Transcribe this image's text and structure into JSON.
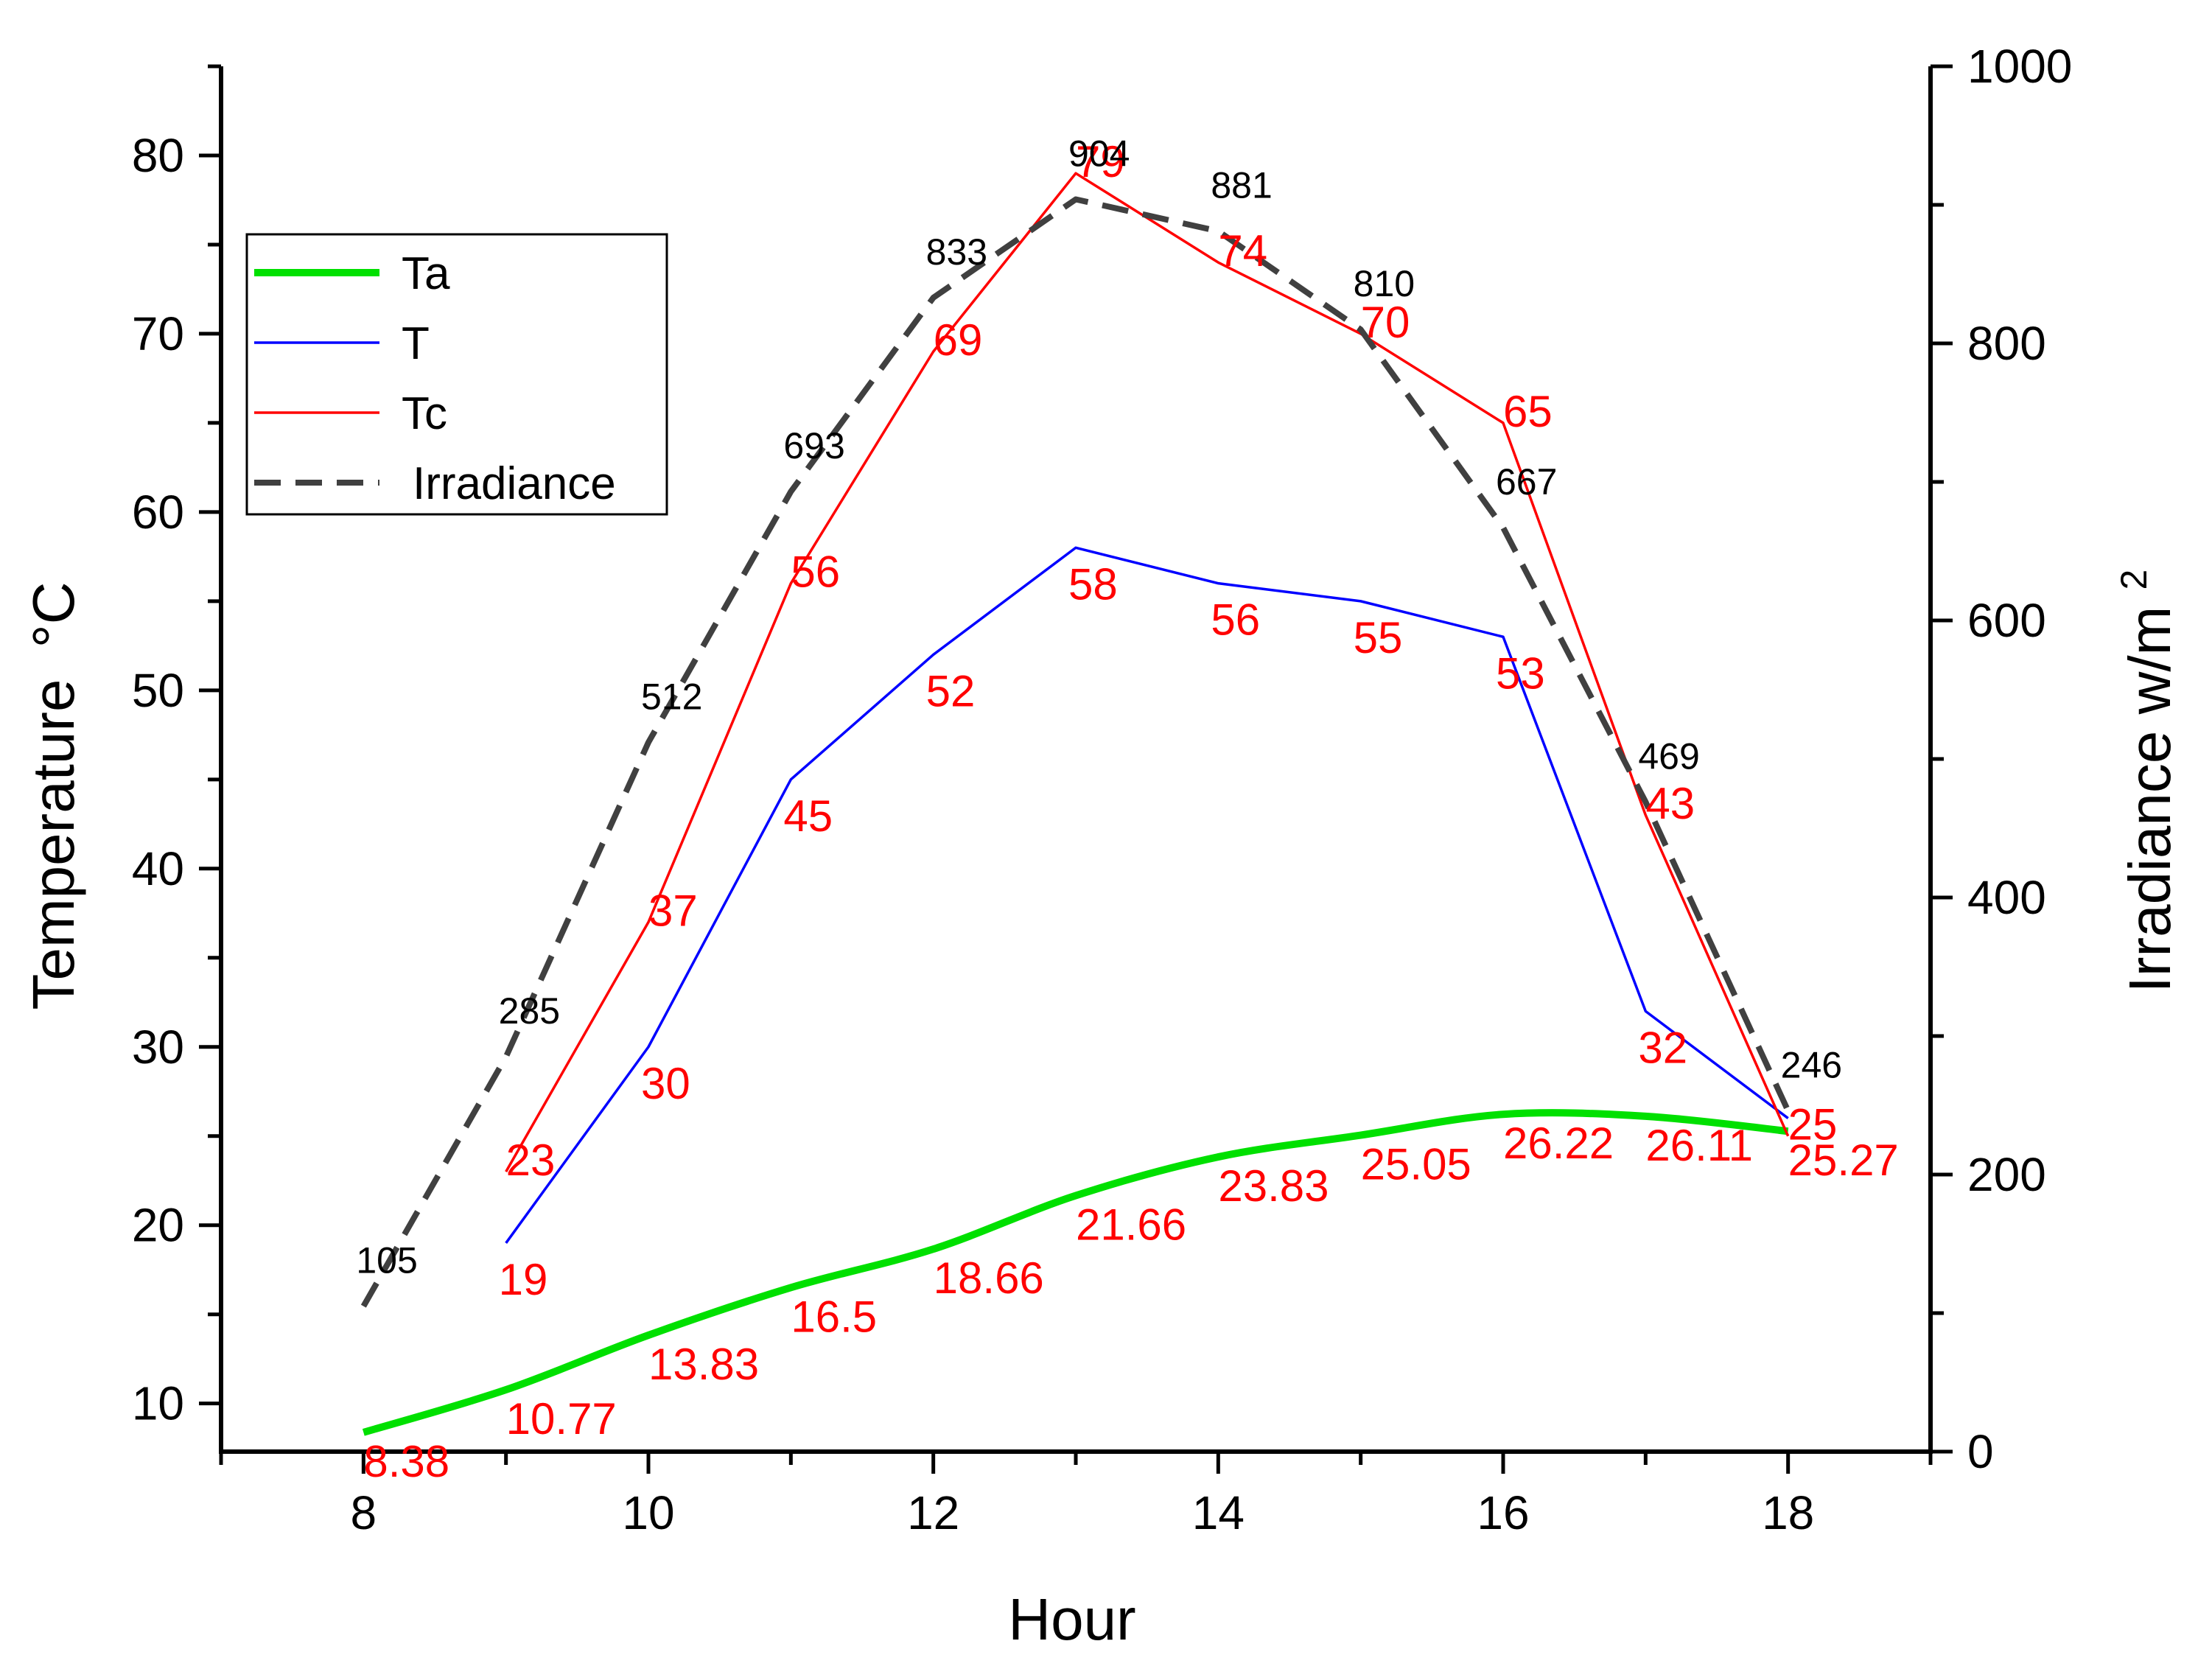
{
  "chart_data": {
    "type": "line",
    "xlabel": "Hour",
    "ylabel": "Temperature",
    "ylabel_unit": "°C",
    "y2label": "Irradiance w/m",
    "y2label_sup": "2",
    "xlim": [
      7,
      19
    ],
    "ylim": [
      7.3,
      85
    ],
    "y2lim": [
      0,
      1000
    ],
    "xticks": [
      8,
      10,
      12,
      14,
      16,
      18
    ],
    "yticks": [
      10,
      20,
      30,
      40,
      50,
      60,
      70,
      80
    ],
    "y2ticks": [
      0,
      200,
      400,
      600,
      800,
      1000
    ],
    "legend_position": "top-left",
    "series": [
      {
        "name": "Ta",
        "axis": "left",
        "color": "#00e000",
        "style": "solid-thick",
        "x": [
          8,
          9,
          10,
          11,
          12,
          13,
          14,
          15,
          16,
          17,
          18
        ],
        "values": [
          8.38,
          10.77,
          13.83,
          16.5,
          18.66,
          21.66,
          23.83,
          25.05,
          26.22,
          26.11,
          25.27
        ],
        "labels": [
          "8.38",
          "10.77",
          "13.83",
          "16.5",
          "18.66",
          "21.66",
          "23.83",
          "25.05",
          "26.22",
          "26.11",
          "25.27"
        ]
      },
      {
        "name": "T",
        "axis": "left",
        "color": "#0000ff",
        "style": "solid",
        "x": [
          9,
          10,
          11,
          12,
          13,
          14,
          15,
          16,
          17,
          18
        ],
        "values": [
          19,
          30,
          45,
          52,
          58,
          56,
          55,
          53,
          32,
          26
        ],
        "labels": [
          "19",
          "30",
          "45",
          "52",
          "58",
          "56",
          "55",
          "53",
          "32",
          ""
        ]
      },
      {
        "name": "Tc",
        "axis": "left",
        "color": "#ff0000",
        "style": "solid",
        "x": [
          9,
          10,
          11,
          12,
          13,
          14,
          15,
          16,
          17,
          18
        ],
        "values": [
          23,
          37,
          56,
          69,
          79,
          74,
          70,
          65,
          43,
          25
        ],
        "labels": [
          "23",
          "37",
          "56",
          "69",
          "79",
          "74",
          "70",
          "65",
          "43",
          "25"
        ]
      },
      {
        "name": "Irradiance",
        "axis": "right",
        "color": "#404040",
        "style": "dashed",
        "x": [
          8,
          9,
          10,
          11,
          12,
          13,
          14,
          15,
          16,
          17,
          18
        ],
        "values": [
          105,
          285,
          512,
          693,
          833,
          904,
          881,
          810,
          667,
          469,
          246
        ],
        "labels": [
          "105",
          "285",
          "512",
          "693",
          "833",
          "904",
          "881",
          "810",
          "667",
          "469",
          "246"
        ]
      }
    ]
  }
}
